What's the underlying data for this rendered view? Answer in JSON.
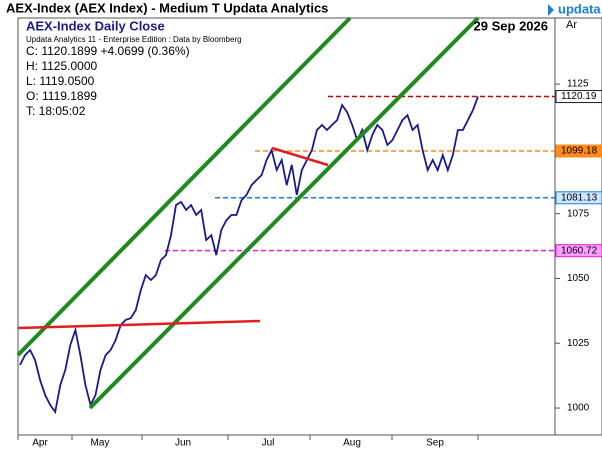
{
  "window_title": "AEX-Index (AEX Index) - Medium T Updata Analytics",
  "brand": "updata",
  "axis_tag": "Ar",
  "chart_data": {
    "type": "line",
    "title": "AEX-Index Daily Close",
    "date": "29 Sep 2026",
    "subtitle": "Updata Analytics 11 - Enterprise Edition : Data by Bloomberg",
    "info": [
      "C: 1120.1899 +4.0699 (0.36%)",
      "H: 1125.0000",
      "L: 1119.0500",
      "O: 1119.1899",
      "T: 18:05:02"
    ],
    "x_axis_labels": [
      "Apr",
      "May",
      "Jun",
      "Jul",
      "Aug",
      "Sep"
    ],
    "series": [
      {
        "name": "AEX-Index Daily Close",
        "color": "#1a1a8c",
        "values": [
          1016.6,
          1020.4,
          1022.4,
          1018.5,
          1010.8,
          1005.0,
          1001.2,
          998.5,
          1008.9,
          1014.7,
          1024.3,
          1030.1,
          1020.4,
          1008.9,
          1001.2,
          1005.0,
          1014.7,
          1020.4,
          1022.4,
          1026.2,
          1032.0,
          1034.0,
          1034.7,
          1037.8,
          1045.5,
          1051.3,
          1049.4,
          1051.3,
          1057.1,
          1059.0,
          1066.7,
          1078.3,
          1079.5,
          1076.4,
          1078.3,
          1074.5,
          1076.4,
          1064.8,
          1066.7,
          1059.0,
          1068.7,
          1072.5,
          1074.5,
          1074.5,
          1080.2,
          1082.2,
          1086.0,
          1088.0,
          1089.9,
          1095.7,
          1099.5,
          1091.8,
          1095.7,
          1086.0,
          1093.8,
          1082.2,
          1091.8,
          1095.7,
          1099.5,
          1107.3,
          1109.2,
          1107.3,
          1109.2,
          1111.1,
          1116.9,
          1114.2,
          1109.2,
          1103.4,
          1107.3,
          1099.5,
          1105.3,
          1109.2,
          1107.3,
          1101.5,
          1103.4,
          1107.3,
          1111.1,
          1113.0,
          1107.3,
          1109.2,
          1099.5,
          1091.8,
          1095.7,
          1091.8,
          1097.6,
          1091.8,
          1097.6,
          1107.3,
          1107.3,
          1111.1,
          1115.0,
          1120.19
        ]
      }
    ],
    "levels": [
      {
        "value": 1120.19,
        "label": "1120.19",
        "color": "#cc0000"
      },
      {
        "value": 1099.18,
        "label": "1099.18",
        "color": "#ff8c1a"
      },
      {
        "value": 1081.13,
        "label": "1081.13",
        "color": "#1a7fe0"
      },
      {
        "value": 1060.72,
        "label": "1060.72",
        "color": "#e020e0"
      }
    ],
    "ylim": [
      989.6,
      1150.5
    ],
    "yticks": [
      1000,
      1025,
      1050,
      1075,
      1100,
      1125
    ]
  }
}
